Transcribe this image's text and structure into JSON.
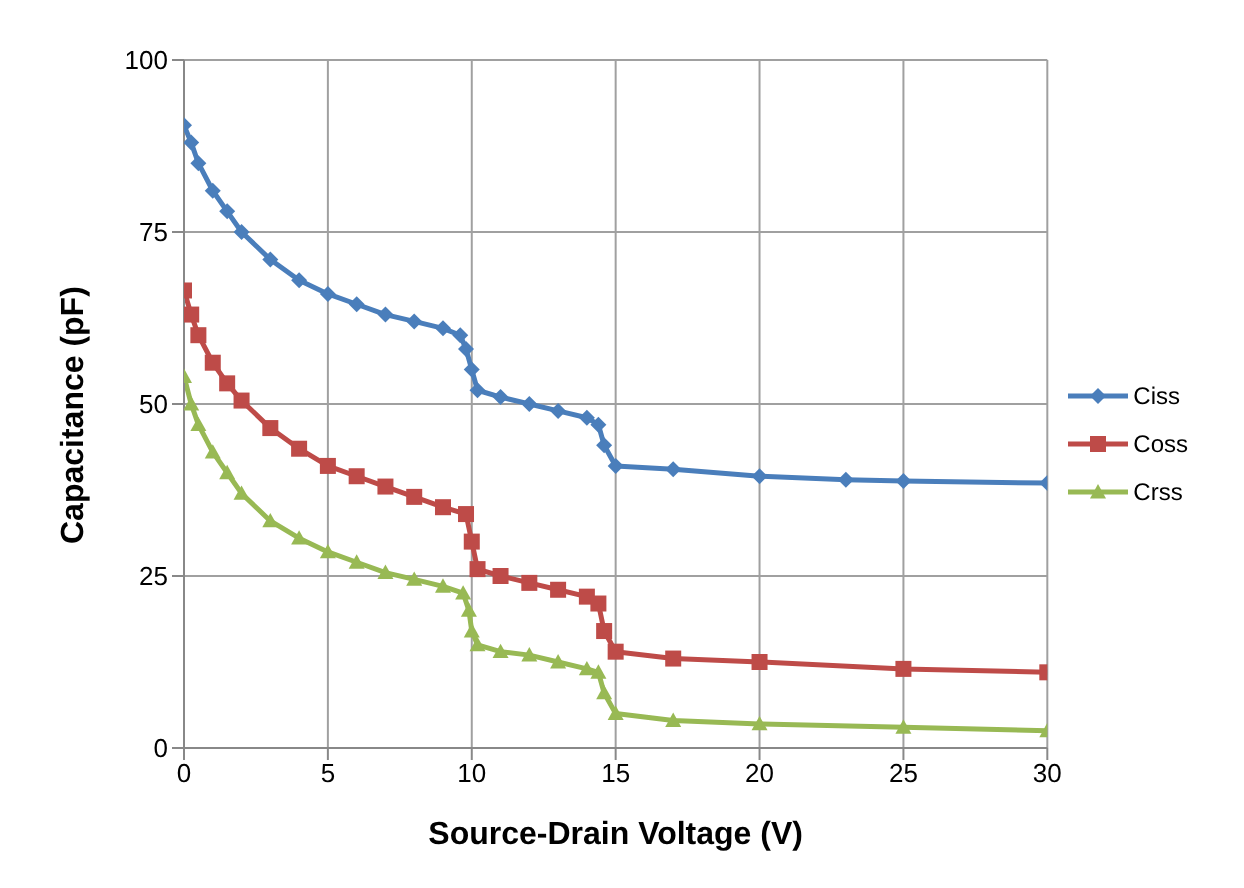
{
  "chart_data": {
    "type": "line",
    "xlabel": "Source-Drain Voltage (V)",
    "ylabel": "Capacitance (pF)",
    "xlim": [
      0,
      30
    ],
    "xticks": [
      0,
      5,
      10,
      15,
      20,
      25,
      30
    ],
    "ylim": [
      0,
      100
    ],
    "yticks": [
      0,
      25,
      50,
      75,
      100
    ],
    "grid": true,
    "legend": "right",
    "series": [
      {
        "name": "Ciss",
        "color": "#4a7ebb",
        "marker": "diamond",
        "x": [
          0,
          0.25,
          0.5,
          1,
          1.5,
          2,
          3,
          4,
          5,
          6,
          7,
          8,
          9,
          9.6,
          9.8,
          10,
          10.2,
          11,
          12,
          13,
          14,
          14.4,
          14.6,
          15,
          17,
          20,
          23,
          25,
          30
        ],
        "values": [
          90.5,
          88,
          85,
          81,
          78,
          75,
          71,
          68,
          66,
          64.5,
          63,
          62,
          61,
          60,
          58,
          55,
          52,
          51,
          50,
          49,
          48,
          47,
          44,
          41,
          40.5,
          39.5,
          39,
          38.8,
          38.5
        ]
      },
      {
        "name": "Coss",
        "color": "#be4b48",
        "marker": "square",
        "x": [
          0,
          0.25,
          0.5,
          1,
          1.5,
          2,
          3,
          4,
          5,
          6,
          7,
          8,
          9,
          9.8,
          10,
          10.2,
          11,
          12,
          13,
          14,
          14.4,
          14.6,
          15,
          17,
          20,
          25,
          30
        ],
        "values": [
          66.5,
          63,
          60,
          56,
          53,
          50.5,
          46.5,
          43.5,
          41,
          39.5,
          38,
          36.5,
          35,
          34,
          30,
          26,
          25,
          24,
          23,
          22,
          21,
          17,
          14,
          13,
          12.5,
          11.5,
          11
        ]
      },
      {
        "name": "Crss",
        "color": "#98b954",
        "marker": "triangle",
        "x": [
          0,
          0.25,
          0.5,
          1,
          1.5,
          2,
          3,
          4,
          5,
          6,
          7,
          8,
          9,
          9.7,
          9.9,
          10,
          10.2,
          11,
          12,
          13,
          14,
          14.4,
          14.6,
          15,
          17,
          20,
          25,
          30
        ],
        "values": [
          54,
          50,
          47,
          43,
          40,
          37,
          33,
          30.5,
          28.5,
          27,
          25.5,
          24.5,
          23.5,
          22.5,
          20,
          17,
          15,
          14,
          13.5,
          12.5,
          11.5,
          11,
          8,
          5,
          4,
          3.5,
          3,
          2.5
        ]
      }
    ]
  }
}
